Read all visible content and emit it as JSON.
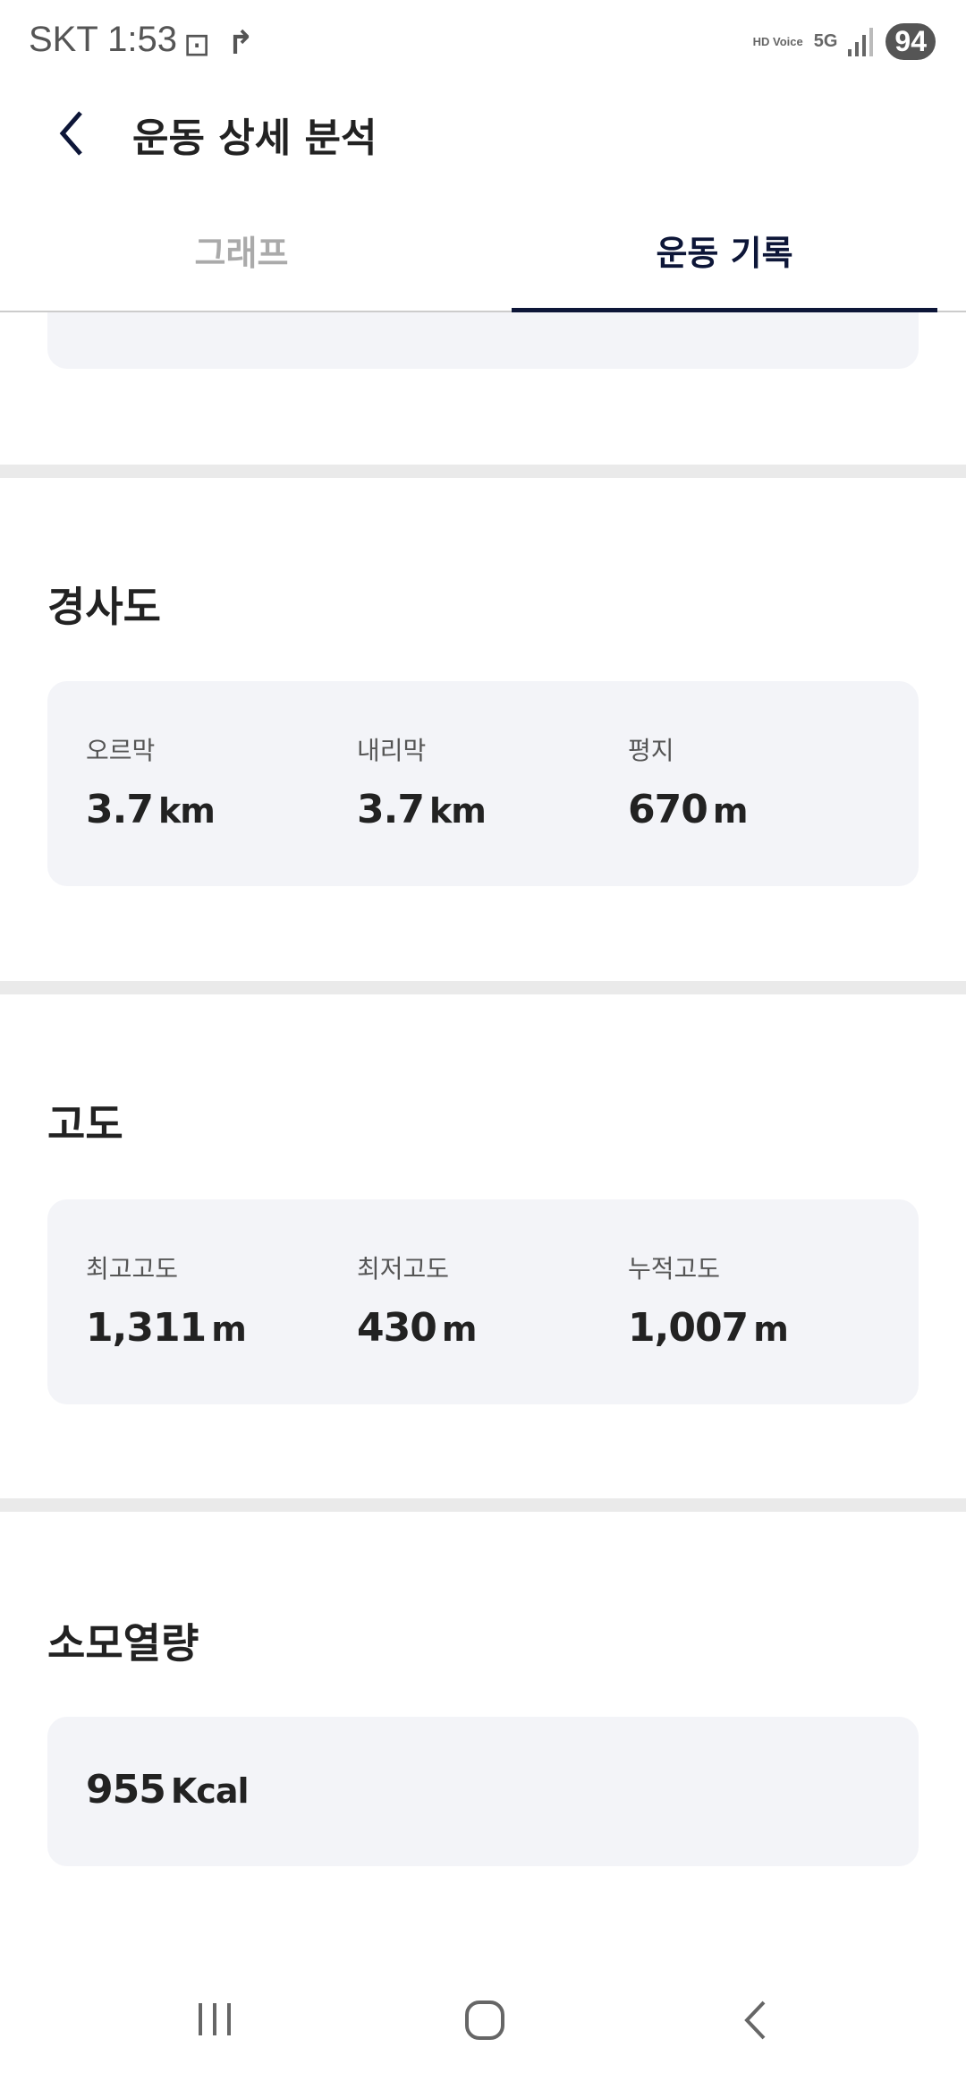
{
  "status_bar": {
    "carrier_time": "SKT 1:53",
    "network": "5G",
    "hd_voice": "HD Voice",
    "battery": "94"
  },
  "header": {
    "title": "운동 상세 분석"
  },
  "tabs": [
    {
      "label": "그래프",
      "active": false
    },
    {
      "label": "운동 기록",
      "active": true
    }
  ],
  "colors": {
    "accent": "#0d1638",
    "card": "#f3f4f8",
    "divider": "#eaeaea"
  },
  "slope": {
    "title": "경사도",
    "items": [
      {
        "label": "오르막",
        "value": "3.7",
        "unit": "km"
      },
      {
        "label": "내리막",
        "value": "3.7",
        "unit": "km"
      },
      {
        "label": "평지",
        "value": "670",
        "unit": "m"
      }
    ]
  },
  "altitude": {
    "title": "고도",
    "items": [
      {
        "label": "최고고도",
        "value": "1,311",
        "unit": "m"
      },
      {
        "label": "최저고도",
        "value": "430",
        "unit": "m"
      },
      {
        "label": "누적고도",
        "value": "1,007",
        "unit": "m"
      }
    ]
  },
  "calories": {
    "title": "소모열량",
    "value": "955",
    "unit": "Kcal"
  }
}
